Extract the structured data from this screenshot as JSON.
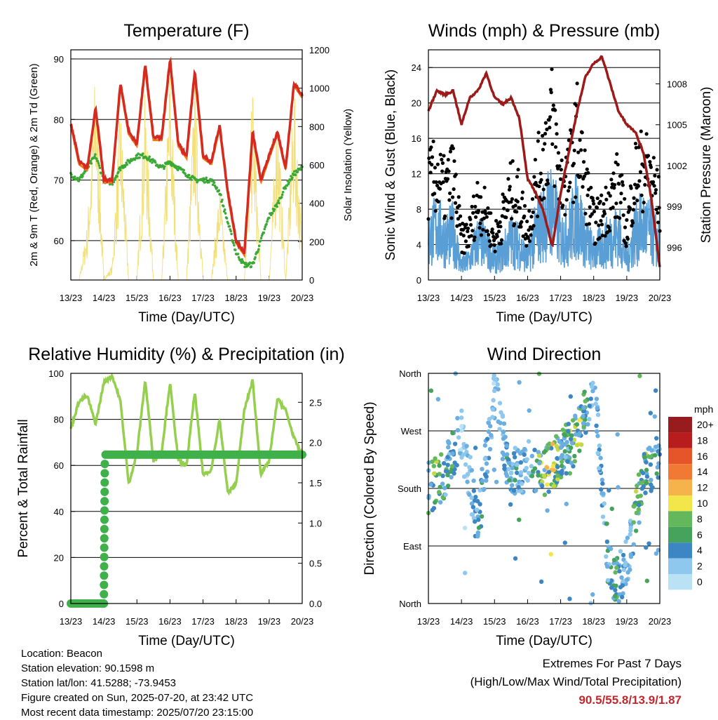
{
  "colors": {
    "temp2m": "#d42a1f",
    "temp9m": "#f07a1a",
    "dew": "#3aa935",
    "solar": "#f3e07a",
    "wind": "#5a9ed6",
    "gust": "#000000",
    "pressure": "#9c1a1a",
    "rh": "#94d04d",
    "precip": "#3fb04a",
    "extreme": "#c0282d",
    "speed_scale": [
      "#b9e2f5",
      "#8ec8ee",
      "#6aaee2",
      "#3c86c4",
      "#45a35c",
      "#62b85a",
      "#c4d845",
      "#f2e64b",
      "#f7b34b",
      "#f07a34",
      "#e6552a",
      "#d32820",
      "#b91c1c",
      "#981b1e"
    ]
  },
  "time_ticks": [
    "13/23",
    "14/23",
    "15/23",
    "16/23",
    "17/23",
    "18/23",
    "19/23",
    "20/23"
  ],
  "xlabel": "Time (Day/UTC)",
  "chart_data": [
    {
      "type": "line",
      "title": "Temperature (F)",
      "ylabel": "2m & 9m T (Red, Orange) & 2m Td (Green)",
      "ylabel_right": "Solar Insolation (Yellow)",
      "ylim": [
        53.5,
        91.5
      ],
      "yticks": [
        "60",
        "70",
        "80",
        "90"
      ],
      "ylim_right": [
        0,
        1200
      ],
      "yticks_right": [
        "0",
        "200",
        "400",
        "600",
        "800",
        "1000",
        "1200"
      ],
      "x": [
        0,
        0.25,
        0.5,
        0.75,
        1,
        1.25,
        1.5,
        1.75,
        2,
        2.25,
        2.5,
        2.75,
        3,
        3.25,
        3.5,
        3.75,
        4,
        4.25,
        4.5,
        4.75,
        5,
        5.25,
        5.5,
        5.75,
        6,
        6.25,
        6.5,
        6.75,
        7
      ],
      "series": [
        {
          "name": "2m T",
          "values": [
            79.5,
            73,
            72,
            82,
            70,
            70,
            86,
            78,
            76,
            89,
            77,
            77,
            90,
            76,
            74,
            88,
            74,
            73,
            79,
            68,
            60,
            58,
            78,
            70,
            74,
            78,
            72,
            86,
            84
          ]
        },
        {
          "name": "2m Td",
          "values": [
            71,
            70,
            72,
            74,
            70,
            69.5,
            72,
            73,
            74,
            74,
            73,
            72,
            73,
            72,
            71,
            70,
            70,
            70,
            68,
            63,
            58,
            56,
            56,
            60,
            64,
            66,
            69,
            71,
            72
          ]
        },
        {
          "name": "Solar",
          "values": [
            0,
            0,
            300,
            1150,
            0,
            80,
            960,
            0,
            0,
            1010,
            0,
            0,
            1150,
            0,
            0,
            1100,
            0,
            0,
            500,
            0,
            0,
            0,
            1050,
            0,
            0,
            960,
            0,
            1050,
            200
          ]
        }
      ]
    },
    {
      "type": "line",
      "title": "Winds (mph) & Pressure (mb)",
      "ylabel": "Sonic Wind & Gust (Blue, Black)",
      "ylabel_right": "Station Pressure (Maroon)",
      "ylim": [
        0,
        26
      ],
      "yticks": [
        "0",
        "4",
        "8",
        "12",
        "16",
        "20",
        "24"
      ],
      "ylim_right": [
        993.6,
        1010.5
      ],
      "yticks_right": [
        "996",
        "999",
        "1002",
        "1005",
        "1008"
      ],
      "x": [
        0,
        0.25,
        0.5,
        0.75,
        1,
        1.25,
        1.5,
        1.75,
        2,
        2.25,
        2.5,
        2.75,
        3,
        3.25,
        3.5,
        3.75,
        4,
        4.25,
        4.5,
        4.75,
        5,
        5.25,
        5.5,
        5.75,
        6,
        6.25,
        6.5,
        6.75,
        7
      ],
      "series": [
        {
          "name": "Wind",
          "values": [
            6,
            8,
            6,
            7,
            2,
            3,
            6,
            5,
            3,
            4,
            6,
            5,
            3,
            7,
            9,
            11,
            6,
            7,
            10,
            6,
            4,
            5,
            6,
            7,
            3,
            7,
            8,
            7,
            5
          ]
        },
        {
          "name": "Gust",
          "values": [
            12,
            13,
            11,
            13,
            5,
            6,
            10,
            8,
            5,
            8,
            11,
            10,
            6,
            12,
            16,
            20,
            12,
            13,
            18,
            12,
            7,
            8,
            10,
            12,
            6,
            13,
            14,
            13,
            9
          ]
        },
        {
          "name": "Pressure",
          "values": [
            1006,
            1007.5,
            1007.2,
            1007.5,
            1005,
            1007,
            1007.5,
            1008.8,
            1007,
            1006.5,
            1007,
            1005.5,
            1001,
            1000,
            998.5,
            996,
            1000,
            1003,
            1006,
            1008.5,
            1009.5,
            1010,
            1008,
            1006,
            1005,
            1004.5,
            1003,
            999.5,
            994.5
          ]
        }
      ]
    },
    {
      "type": "line",
      "title": "Relative Humidity (%) & Precipitation (in)",
      "ylabel": "Percent & Total Rainfall",
      "ylim": [
        0,
        100
      ],
      "yticks": [
        "0",
        "20",
        "40",
        "60",
        "80",
        "100"
      ],
      "ylim_right": [
        0,
        2.86
      ],
      "yticks_right": [
        "0.0",
        "0.5",
        "1.0",
        "1.5",
        "2.0",
        "2.5"
      ],
      "x": [
        0,
        0.25,
        0.5,
        0.75,
        1,
        1.25,
        1.5,
        1.75,
        2,
        2.25,
        2.5,
        2.75,
        3,
        3.25,
        3.5,
        3.75,
        4,
        4.25,
        4.5,
        4.75,
        5,
        5.25,
        5.5,
        5.75,
        6,
        6.25,
        6.5,
        6.75,
        7
      ],
      "series": [
        {
          "name": "RH",
          "values": [
            76,
            88,
            90,
            78,
            96,
            99,
            88,
            52,
            65,
            97,
            62,
            66,
            96,
            62,
            60,
            92,
            56,
            58,
            80,
            48,
            52,
            84,
            97,
            56,
            62,
            89,
            84,
            72,
            64
          ]
        },
        {
          "name": "Precipitation",
          "values": [
            0,
            0,
            0,
            0,
            0.02,
            1.85,
            1.87,
            1.87,
            1.87,
            1.87,
            1.87,
            1.87,
            1.87,
            1.87,
            1.87,
            1.87,
            1.87,
            1.87,
            1.87,
            1.87,
            1.87,
            1.87,
            1.87,
            1.87,
            1.87,
            1.87,
            1.87,
            1.87,
            1.87
          ]
        }
      ]
    },
    {
      "type": "scatter",
      "title": "Wind Direction",
      "ylabel": "Direction (Colored By Speed)",
      "yticks": [
        "North",
        "East",
        "South",
        "West",
        "North"
      ],
      "ylim": [
        0,
        360
      ],
      "x": [
        0,
        0.5,
        1,
        1.5,
        2,
        2.5,
        3,
        3.5,
        4,
        4.5,
        5,
        5.5,
        6,
        6.5,
        7
      ],
      "values": [
        180,
        200,
        270,
        120,
        330,
        190,
        220,
        200,
        235,
        260,
        350,
        20,
        60,
        200,
        230
      ],
      "legend_title": "mph",
      "legend_labels": [
        "20+",
        "18",
        "16",
        "14",
        "12",
        "10",
        "8",
        "6",
        "4",
        "2",
        "0"
      ]
    }
  ],
  "info": {
    "location": "Location: Beacon",
    "elevation": "Station elevation: 90.1598 m",
    "latlon": "Station lat/lon: 41.5288; -73.9453",
    "created": "Figure created on Sun, 2025-07-20, at 23:42 UTC",
    "recent": "Most recent data timestamp: 2025/07/20 23:15:00"
  },
  "extremes": {
    "title": "Extremes For Past 7 Days",
    "subtitle": "(High/Low/Max Wind/Total Precipitation)",
    "values": "90.5/55.8/13.9/1.87"
  }
}
